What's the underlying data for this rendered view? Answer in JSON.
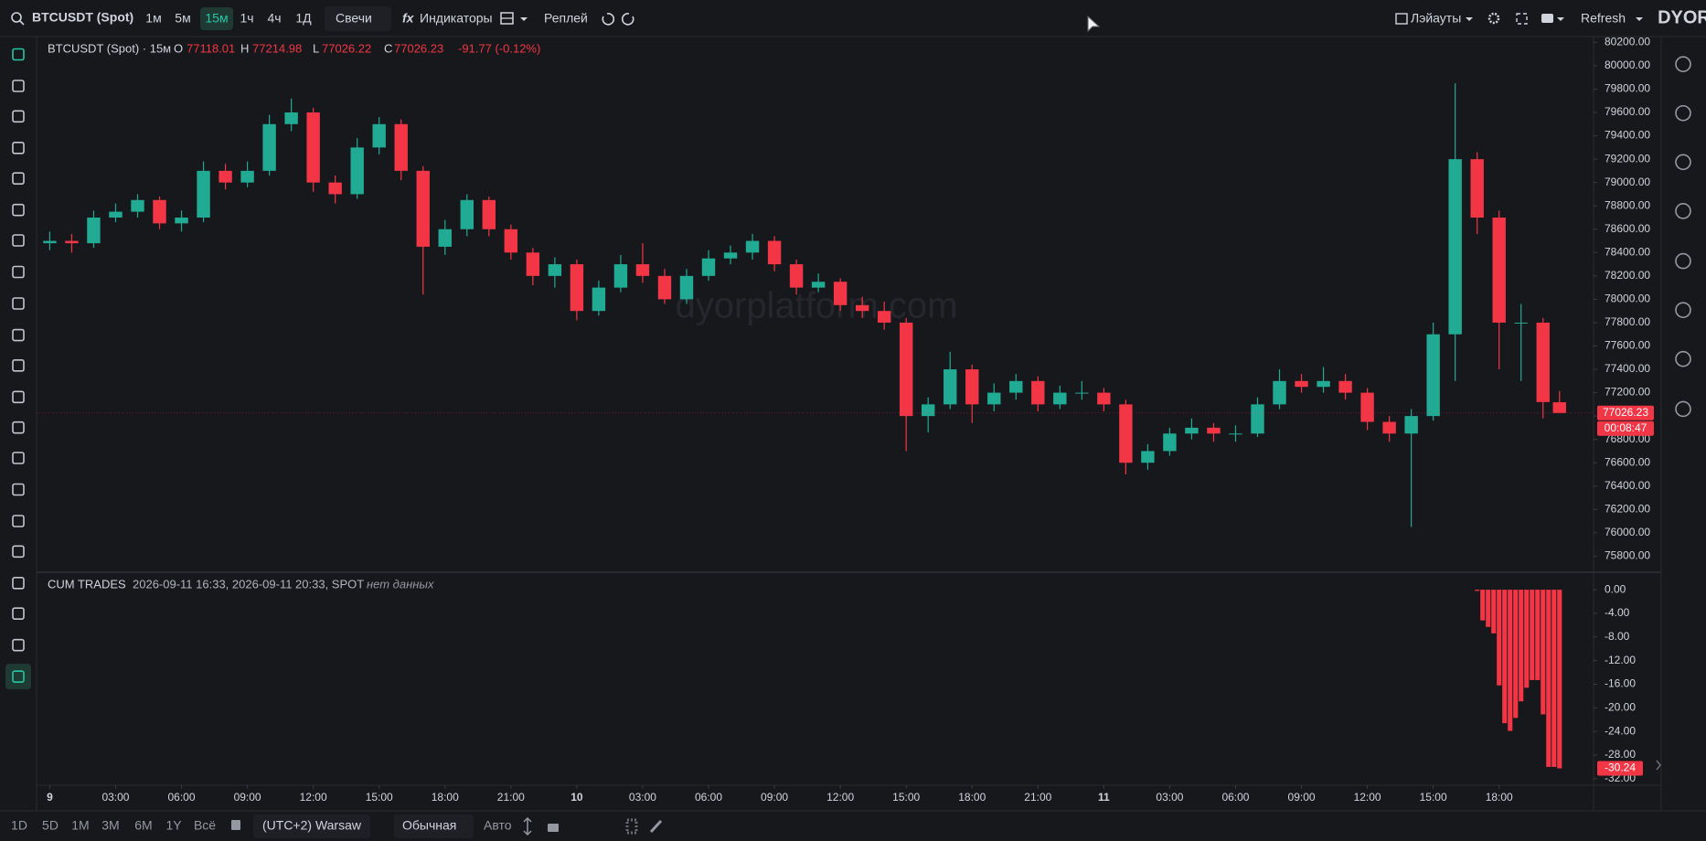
{
  "toolbar": {
    "symbol": "BTCUSDT (Spot)",
    "intervals": [
      "1м",
      "5м",
      "15м",
      "1ч",
      "4ч",
      "1Д"
    ],
    "chart_style": "Свечи",
    "indicators_icon": "fx",
    "indicators": "Индикаторы",
    "replay": "Реплей",
    "layouts": "Лэйауты",
    "refresh": "Refresh",
    "logo": "DYOR"
  },
  "watermark": "dyorplatform.com",
  "bottom_bar": {
    "ranges": [
      "1D",
      "5D",
      "1M",
      "3M",
      "6M",
      "1Y",
      "Всё"
    ],
    "timezone": "(UTC+2) Warsaw",
    "scale_mode": "Обычная",
    "auto": "Авто"
  },
  "chart_data": [
    {
      "type": "candlestick",
      "title": "BTCUSDT (Spot) · 15м",
      "ohlc_labels": [
        "O",
        "H",
        "L",
        "C"
      ],
      "ohlc_values": [
        77118.01,
        77214.98,
        77026.22,
        77026.23
      ],
      "change": "-91.77 (-0.12%)",
      "x": [
        0,
        1,
        2,
        3,
        4,
        5,
        6,
        7,
        8,
        9,
        10,
        11,
        12,
        13,
        14,
        15,
        16,
        17,
        18,
        19,
        20,
        21,
        22,
        23,
        24,
        25,
        26,
        27,
        28,
        29,
        30,
        31,
        32,
        33,
        34,
        35,
        36,
        37,
        38,
        39,
        40,
        41,
        42,
        43,
        44,
        45,
        46,
        47,
        48,
        49,
        50,
        51,
        52,
        53,
        54,
        55,
        56,
        57,
        58,
        59,
        60,
        61,
        62,
        63,
        64,
        65,
        66,
        67,
        68,
        68.75
      ],
      "open": [
        78480,
        78500,
        78480,
        78700,
        78750,
        78850,
        78650,
        78700,
        79100,
        79000,
        79100,
        79500,
        79600,
        79000,
        78900,
        79300,
        79500,
        79100,
        78450,
        78600,
        78850,
        78600,
        78400,
        78200,
        78300,
        77900,
        78100,
        78300,
        78200,
        78000,
        78200,
        78350,
        78400,
        78500,
        78300,
        78100,
        78150,
        77950,
        77900,
        77800,
        77000,
        77100,
        77400,
        77100,
        77200,
        77300,
        77100,
        77200,
        77200,
        77100,
        76600,
        76700,
        76850,
        76900,
        76850,
        76850,
        77100,
        77300,
        77250,
        77300,
        77200,
        76950,
        76850,
        77000,
        77700,
        79200,
        78700,
        77800,
        77800,
        77118.01
      ],
      "high": [
        78580,
        78560,
        78760,
        78820,
        78900,
        78880,
        78760,
        79180,
        79160,
        79180,
        79580,
        79720,
        79640,
        79060,
        79380,
        79560,
        79540,
        79140,
        78680,
        78900,
        78880,
        78640,
        78440,
        78360,
        78340,
        78160,
        78380,
        78480,
        78260,
        78260,
        78420,
        78460,
        78560,
        78540,
        78340,
        78220,
        78180,
        78020,
        77980,
        77840,
        77160,
        77550,
        77440,
        77280,
        77360,
        77340,
        77260,
        77300,
        77240,
        77140,
        76760,
        76900,
        76980,
        76940,
        76920,
        77160,
        77400,
        77360,
        77420,
        77360,
        77240,
        77000,
        77060,
        77800,
        79850,
        79260,
        78760,
        77960,
        77840,
        77214.98
      ],
      "low": [
        78420,
        78400,
        78440,
        78660,
        78700,
        78600,
        78580,
        78660,
        78940,
        78960,
        79060,
        79440,
        78920,
        78820,
        78860,
        79240,
        79020,
        78040,
        78380,
        78540,
        78540,
        78340,
        78120,
        78100,
        77820,
        77860,
        78060,
        78140,
        77960,
        77960,
        78160,
        78300,
        78340,
        78240,
        78040,
        78060,
        77900,
        77840,
        77740,
        76700,
        76860,
        77060,
        76940,
        77040,
        77140,
        77040,
        77060,
        77140,
        77040,
        76500,
        76540,
        76660,
        76800,
        76780,
        76780,
        76820,
        77060,
        77200,
        77200,
        77140,
        76880,
        76780,
        76050,
        76960,
        77300,
        78560,
        77400,
        77300,
        76980,
        77026.22
      ],
      "close": [
        78500,
        78480,
        78700,
        78750,
        78850,
        78650,
        78700,
        79100,
        79000,
        79100,
        79500,
        79600,
        79000,
        78900,
        79300,
        79500,
        79100,
        78450,
        78600,
        78850,
        78600,
        78400,
        78200,
        78300,
        77900,
        78100,
        78300,
        78200,
        78000,
        78200,
        78350,
        78400,
        78500,
        78300,
        78100,
        78150,
        77950,
        77900,
        77800,
        77000,
        77100,
        77400,
        77100,
        77200,
        77300,
        77100,
        77200,
        77200,
        77100,
        76600,
        76700,
        76850,
        76900,
        76850,
        76850,
        77100,
        77300,
        77250,
        77300,
        77200,
        76950,
        76850,
        77000,
        77700,
        79200,
        78700,
        77800,
        77800,
        77120,
        77026.23
      ],
      "up_color": "#22ab94",
      "down_color": "#f23645",
      "xlim": [
        -0.6,
        70.3
      ],
      "ylim": [
        75670,
        80250
      ],
      "xticks": [
        {
          "value": 0,
          "label": "9"
        },
        {
          "value": 3,
          "label": "03:00"
        },
        {
          "value": 6,
          "label": "06:00"
        },
        {
          "value": 9,
          "label": "09:00"
        },
        {
          "value": 12,
          "label": "12:00"
        },
        {
          "value": 15,
          "label": "15:00"
        },
        {
          "value": 18,
          "label": "18:00"
        },
        {
          "value": 21,
          "label": "21:00"
        },
        {
          "value": 24,
          "label": "10"
        },
        {
          "value": 27,
          "label": "03:00"
        },
        {
          "value": 30,
          "label": "06:00"
        },
        {
          "value": 33,
          "label": "09:00"
        },
        {
          "value": 36,
          "label": "12:00"
        },
        {
          "value": 39,
          "label": "15:00"
        },
        {
          "value": 42,
          "label": "18:00"
        },
        {
          "value": 45,
          "label": "21:00"
        },
        {
          "value": 48,
          "label": "11"
        },
        {
          "value": 51,
          "label": "03:00"
        },
        {
          "value": 54,
          "label": "06:00"
        },
        {
          "value": 57,
          "label": "09:00"
        },
        {
          "value": 60,
          "label": "12:00"
        },
        {
          "value": 63,
          "label": "15:00"
        },
        {
          "value": 66,
          "label": "18:00"
        }
      ],
      "yticks": [
        {
          "value": 75800,
          "label": "75800.00"
        },
        {
          "value": 76000,
          "label": "76000.00"
        },
        {
          "value": 76200,
          "label": "76200.00"
        },
        {
          "value": 76400,
          "label": "76400.00"
        },
        {
          "value": 76600,
          "label": "76600.00"
        },
        {
          "value": 76800,
          "label": "76800.00"
        },
        {
          "value": 77000,
          "label": "77000.00"
        },
        {
          "value": 77200,
          "label": "77200.00"
        },
        {
          "value": 77400,
          "label": "77400.00"
        },
        {
          "value": 77600,
          "label": "77600.00"
        },
        {
          "value": 77800,
          "label": "77800.00"
        },
        {
          "value": 78000,
          "label": "78000.00"
        },
        {
          "value": 78200,
          "label": "78200.00"
        },
        {
          "value": 78400,
          "label": "78400.00"
        },
        {
          "value": 78600,
          "label": "78600.00"
        },
        {
          "value": 78800,
          "label": "78800.00"
        },
        {
          "value": 79000,
          "label": "79000.00"
        },
        {
          "value": 79200,
          "label": "79200.00"
        },
        {
          "value": 79400,
          "label": "79400.00"
        },
        {
          "value": 79600,
          "label": "79600.00"
        },
        {
          "value": 79800,
          "label": "79800.00"
        },
        {
          "value": 80000,
          "label": "80000.00"
        },
        {
          "value": 80200,
          "label": "80200.00"
        }
      ],
      "last_price": 77026.23,
      "countdown": "00:08:47"
    },
    {
      "type": "bar",
      "title": "CUM TRADES",
      "subtitle": "2026-09-11 16:33, 2026-09-11 20:33, SPOT",
      "annotation": "нет данных",
      "x": [
        65,
        65.25,
        65.5,
        65.75,
        66,
        66.25,
        66.5,
        66.75,
        67,
        67.25,
        67.5,
        67.75,
        68,
        68.25,
        68.5,
        68.75
      ],
      "values": [
        -0.2,
        -5.2,
        -6.3,
        -7.4,
        -16.2,
        -22.6,
        -23.9,
        -21.7,
        -18.9,
        -16.6,
        -15.3,
        -15.3,
        -21.1,
        -30,
        -30,
        -30.24
      ],
      "color": "#f23645",
      "xlim": [
        -0.6,
        70.3
      ],
      "ylim": [
        -33.1,
        2.8
      ],
      "yticks": [
        {
          "value": 0,
          "label": "0.00"
        },
        {
          "value": -4,
          "label": "-4.00"
        },
        {
          "value": -8,
          "label": "-8.00"
        },
        {
          "value": -12,
          "label": "-12.00"
        },
        {
          "value": -16,
          "label": "-16.00"
        },
        {
          "value": -20,
          "label": "-20.00"
        },
        {
          "value": -24,
          "label": "-24.00"
        },
        {
          "value": -28,
          "label": "-28.00"
        },
        {
          "value": -32,
          "label": "-32.00"
        }
      ],
      "last_value": -30.24
    }
  ]
}
